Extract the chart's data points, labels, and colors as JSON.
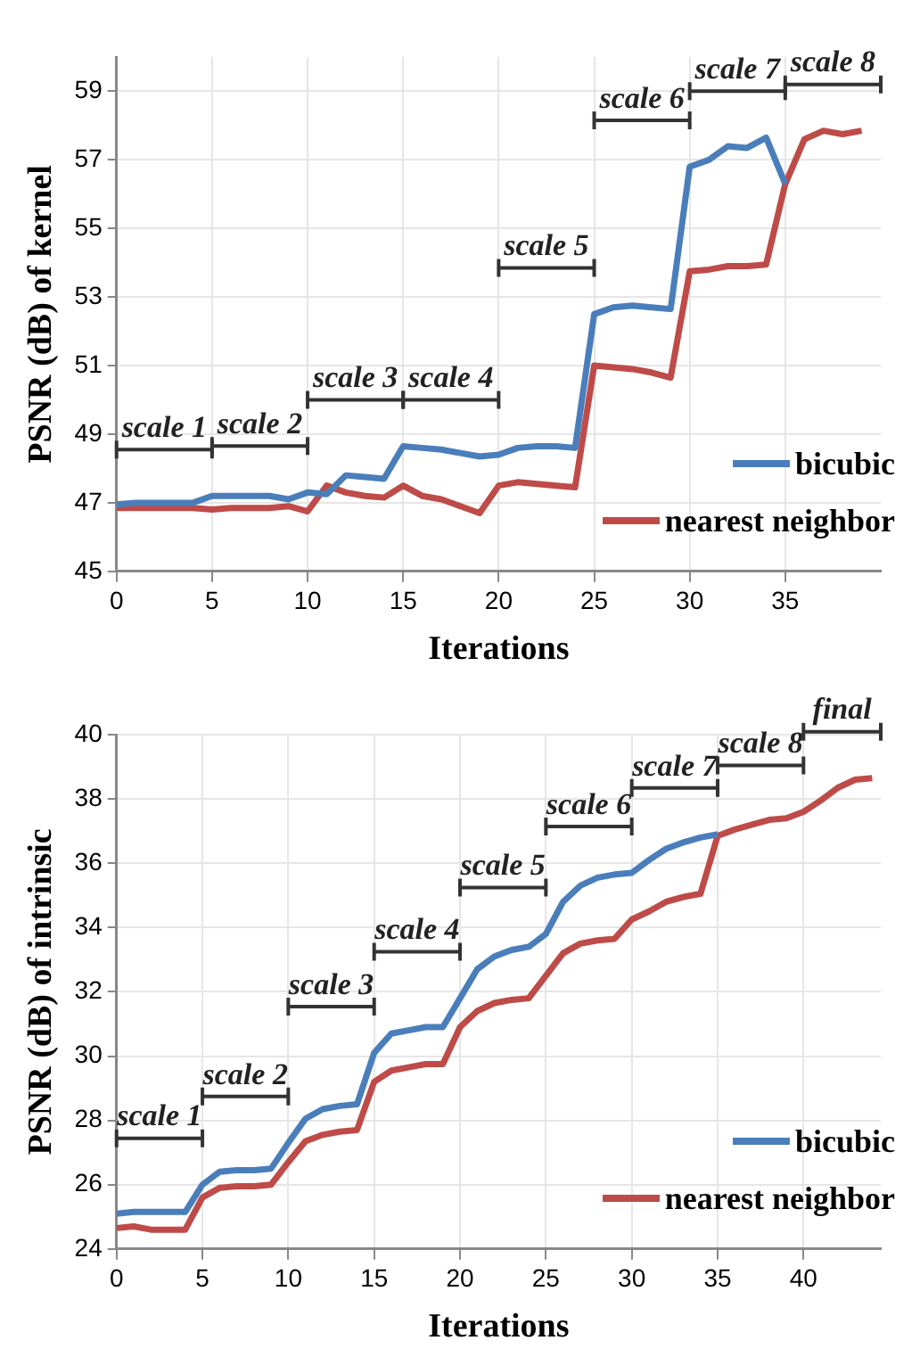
{
  "chart_data": [
    {
      "type": "line",
      "xlabel": "Iterations",
      "ylabel": "PSNR (dB) of kernel",
      "grid": true,
      "legend": "bottom right",
      "marker": "none",
      "x": [
        0,
        1,
        2,
        3,
        4,
        5,
        6,
        7,
        8,
        9,
        10,
        11,
        12,
        13,
        14,
        15,
        16,
        17,
        18,
        19,
        20,
        21,
        22,
        23,
        24,
        25,
        26,
        27,
        28,
        29,
        30,
        31,
        32,
        33,
        34,
        35,
        36,
        37,
        38,
        39
      ],
      "xlim": [
        0,
        40
      ],
      "xticks": [
        0,
        5,
        10,
        15,
        20,
        25,
        30,
        35
      ],
      "ylim": [
        45,
        60
      ],
      "yticks": [
        45,
        47,
        49,
        51,
        53,
        55,
        57,
        59
      ],
      "series": [
        {
          "name": "bicubic",
          "color": "#4a7ebb",
          "values": [
            46.95,
            47.0,
            47.0,
            47.0,
            47.0,
            47.2,
            47.2,
            47.2,
            47.2,
            47.1,
            47.3,
            47.25,
            47.8,
            47.75,
            47.7,
            48.65,
            48.6,
            48.55,
            48.45,
            48.35,
            48.4,
            48.6,
            48.65,
            48.65,
            48.6,
            52.5,
            52.7,
            52.75,
            52.7,
            52.65,
            56.8,
            57.0,
            57.4,
            57.35,
            57.65,
            56.3,
            null,
            null,
            null,
            null
          ]
        },
        {
          "name": "nearest neighbor",
          "color": "#be4b48",
          "values": [
            46.85,
            46.85,
            46.85,
            46.85,
            46.85,
            46.8,
            46.85,
            46.85,
            46.85,
            46.9,
            46.75,
            47.5,
            47.3,
            47.2,
            47.15,
            47.5,
            47.2,
            47.1,
            46.9,
            46.7,
            47.5,
            47.6,
            47.55,
            47.5,
            47.45,
            51.0,
            50.95,
            50.9,
            50.8,
            50.65,
            53.75,
            53.8,
            53.9,
            53.9,
            53.95,
            56.3,
            57.6,
            57.85,
            57.75,
            57.85
          ]
        }
      ],
      "annotations": [
        "scale 1",
        "scale 2",
        "scale 3",
        "scale 4",
        "scale 5",
        "scale 6",
        "scale 7",
        "scale 8"
      ]
    },
    {
      "type": "line",
      "xlabel": "Iterations",
      "ylabel": "PSNR (dB) of intrinsic",
      "grid": true,
      "legend": "bottom right",
      "marker": "none",
      "x": [
        0,
        1,
        2,
        3,
        4,
        5,
        6,
        7,
        8,
        9,
        10,
        11,
        12,
        13,
        14,
        15,
        16,
        17,
        18,
        19,
        20,
        21,
        22,
        23,
        24,
        25,
        26,
        27,
        28,
        29,
        30,
        31,
        32,
        33,
        34,
        35,
        36,
        37,
        38,
        39,
        40,
        41,
        42,
        43,
        44
      ],
      "xlim": [
        0,
        44.5
      ],
      "xticks": [
        0,
        5,
        10,
        15,
        20,
        25,
        30,
        35,
        40
      ],
      "ylim": [
        24,
        40
      ],
      "yticks": [
        24,
        26,
        28,
        30,
        32,
        34,
        36,
        38,
        40
      ],
      "series": [
        {
          "name": "bicubic",
          "color": "#4a7ebb",
          "values": [
            25.1,
            25.15,
            25.15,
            25.15,
            25.15,
            26.0,
            26.4,
            26.45,
            26.45,
            26.5,
            27.3,
            28.05,
            28.35,
            28.45,
            28.5,
            30.1,
            30.7,
            30.8,
            30.9,
            30.9,
            31.8,
            32.7,
            33.1,
            33.3,
            33.4,
            33.8,
            34.8,
            35.3,
            35.55,
            35.65,
            35.7,
            36.1,
            36.45,
            36.65,
            36.8,
            36.9,
            null,
            null,
            null,
            null,
            null,
            null,
            null,
            null,
            null
          ]
        },
        {
          "name": "nearest neighbor",
          "color": "#be4b48",
          "values": [
            24.65,
            24.7,
            24.6,
            24.6,
            24.6,
            25.6,
            25.9,
            25.95,
            25.95,
            26.0,
            26.7,
            27.35,
            27.55,
            27.65,
            27.7,
            29.2,
            29.55,
            29.65,
            29.75,
            29.75,
            30.9,
            31.4,
            31.65,
            31.75,
            31.8,
            32.5,
            33.2,
            33.5,
            33.6,
            33.65,
            34.25,
            34.5,
            34.8,
            34.95,
            35.05,
            36.85,
            37.05,
            37.2,
            37.35,
            37.4,
            37.6,
            37.95,
            38.35,
            38.6,
            38.65
          ]
        }
      ],
      "annotations": [
        "scale 1",
        "scale 2",
        "scale 3",
        "scale 4",
        "scale 5",
        "scale 6",
        "scale 7",
        "scale 8",
        "final"
      ]
    }
  ]
}
